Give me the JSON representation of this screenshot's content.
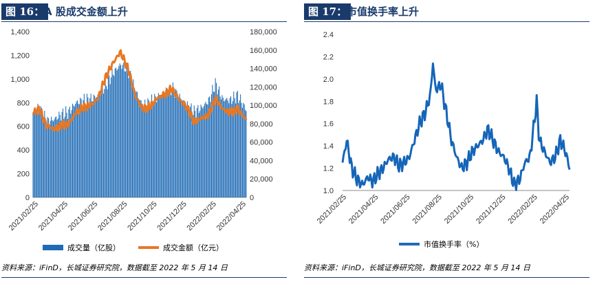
{
  "left": {
    "figure_label": "图 16：",
    "title": "A 股成交金额上升",
    "legend": {
      "bars": "成交量（亿股）",
      "line": "成交金额（亿元）"
    },
    "source": "资料来源：iFinD，长城证券研究院，数据截至 2022 年 5 月 14 日"
  },
  "right": {
    "figure_label": "图 17：",
    "title": "市值换手率上升",
    "legend": {
      "line": "市值换手率（%）"
    },
    "source": "资料来源：iFinD，长城证券研究院，数据截至 2022 年 5 月 14 日"
  },
  "colors": {
    "bar": "#1f6bb5",
    "amount_line": "#e87722",
    "turnover_line": "#1565b8",
    "accent": "#1a3a6b"
  },
  "chart_data": [
    {
      "type": "bar+line",
      "x_tick_labels": [
        "2021/02/25",
        "2021/04/25",
        "2021/06/25",
        "2021/08/25",
        "2021/10/25",
        "2021/12/25",
        "2022/02/25",
        "2022/04/25"
      ],
      "x_range": [
        "2021/02/25",
        "2022/05/13"
      ],
      "y_left": {
        "label": "",
        "ylim": [
          0,
          1400
        ],
        "ticks": [
          "0",
          "200",
          "400",
          "600",
          "800",
          "1,000",
          "1,200",
          "1,400"
        ]
      },
      "y_right": {
        "label": "",
        "ylim": [
          0,
          180000
        ],
        "ticks": [
          "0",
          "20,000",
          "40,000",
          "60,000",
          "80,000",
          "100,000",
          "120,000",
          "140,000",
          "160,000",
          "180,000"
        ]
      },
      "series": [
        {
          "name": "成交量（亿股）",
          "type": "bar",
          "axis": "left",
          "points": [
            [
              "2021/02/25",
              720
            ],
            [
              "2021/03/10",
              760
            ],
            [
              "2021/03/25",
              640
            ],
            [
              "2021/04/10",
              660
            ],
            [
              "2021/04/25",
              700
            ],
            [
              "2021/05/10",
              720
            ],
            [
              "2021/05/25",
              800
            ],
            [
              "2021/06/10",
              820
            ],
            [
              "2021/06/25",
              830
            ],
            [
              "2021/07/10",
              860
            ],
            [
              "2021/07/25",
              940
            ],
            [
              "2021/08/10",
              1050
            ],
            [
              "2021/08/25",
              1120
            ],
            [
              "2021/09/10",
              1080
            ],
            [
              "2021/09/25",
              900
            ],
            [
              "2021/10/10",
              780
            ],
            [
              "2021/10/25",
              800
            ],
            [
              "2021/11/10",
              850
            ],
            [
              "2021/11/25",
              880
            ],
            [
              "2021/12/10",
              920
            ],
            [
              "2021/12/25",
              850
            ],
            [
              "2022/01/10",
              780
            ],
            [
              "2022/01/25",
              720
            ],
            [
              "2022/02/10",
              760
            ],
            [
              "2022/02/25",
              820
            ],
            [
              "2022/03/10",
              960
            ],
            [
              "2022/03/25",
              830
            ],
            [
              "2022/04/10",
              820
            ],
            [
              "2022/04/25",
              860
            ],
            [
              "2022/05/13",
              740
            ]
          ]
        },
        {
          "name": "成交金额（亿元）",
          "type": "line",
          "axis": "right",
          "points": [
            [
              "2021/02/25",
              92000
            ],
            [
              "2021/03/10",
              96000
            ],
            [
              "2021/03/25",
              78000
            ],
            [
              "2021/04/10",
              74000
            ],
            [
              "2021/04/25",
              78000
            ],
            [
              "2021/05/10",
              80000
            ],
            [
              "2021/05/25",
              92000
            ],
            [
              "2021/06/10",
              98000
            ],
            [
              "2021/06/25",
              100000
            ],
            [
              "2021/07/10",
              108000
            ],
            [
              "2021/07/25",
              130000
            ],
            [
              "2021/08/10",
              146000
            ],
            [
              "2021/08/25",
              158000
            ],
            [
              "2021/09/10",
              140000
            ],
            [
              "2021/09/25",
              110000
            ],
            [
              "2021/10/10",
              96000
            ],
            [
              "2021/10/25",
              98000
            ],
            [
              "2021/11/10",
              108000
            ],
            [
              "2021/11/25",
              112000
            ],
            [
              "2021/12/10",
              118000
            ],
            [
              "2021/12/25",
              106000
            ],
            [
              "2022/01/10",
              98000
            ],
            [
              "2022/01/25",
              82000
            ],
            [
              "2022/02/10",
              86000
            ],
            [
              "2022/02/25",
              90000
            ],
            [
              "2022/03/10",
              108000
            ],
            [
              "2022/03/25",
              96000
            ],
            [
              "2022/04/10",
              92000
            ],
            [
              "2022/04/25",
              96000
            ],
            [
              "2022/05/13",
              84000
            ]
          ]
        }
      ]
    },
    {
      "type": "line",
      "x_tick_labels": [
        "2021/02/25",
        "2021/04/25",
        "2021/06/25",
        "2021/08/25",
        "2021/10/25",
        "2021/12/25",
        "2022/02/25",
        "2022/04/25"
      ],
      "x_range": [
        "2021/02/25",
        "2022/05/13"
      ],
      "y": {
        "label": "",
        "ylim": [
          1.0,
          2.4
        ],
        "ticks": [
          "1.0",
          "1.2",
          "1.4",
          "1.6",
          "1.8",
          "2.0",
          "2.2",
          "2.4"
        ]
      },
      "series": [
        {
          "name": "市值换手率（%）",
          "points": [
            [
              "2021/02/25",
              1.25
            ],
            [
              "2021/03/05",
              1.45
            ],
            [
              "2021/03/15",
              1.2
            ],
            [
              "2021/03/25",
              1.1
            ],
            [
              "2021/04/05",
              1.05
            ],
            [
              "2021/04/15",
              1.12
            ],
            [
              "2021/04/25",
              1.08
            ],
            [
              "2021/05/05",
              1.15
            ],
            [
              "2021/05/15",
              1.2
            ],
            [
              "2021/05/25",
              1.28
            ],
            [
              "2021/06/05",
              1.3
            ],
            [
              "2021/06/15",
              1.22
            ],
            [
              "2021/06/25",
              1.25
            ],
            [
              "2021/07/05",
              1.3
            ],
            [
              "2021/07/15",
              1.45
            ],
            [
              "2021/07/25",
              1.6
            ],
            [
              "2021/08/05",
              1.7
            ],
            [
              "2021/08/15",
              1.85
            ],
            [
              "2021/08/20",
              2.15
            ],
            [
              "2021/08/25",
              1.9
            ],
            [
              "2021/09/05",
              1.95
            ],
            [
              "2021/09/15",
              1.7
            ],
            [
              "2021/09/25",
              1.45
            ],
            [
              "2021/10/05",
              1.3
            ],
            [
              "2021/10/15",
              1.2
            ],
            [
              "2021/10/25",
              1.25
            ],
            [
              "2021/11/05",
              1.35
            ],
            [
              "2021/11/15",
              1.4
            ],
            [
              "2021/11/25",
              1.45
            ],
            [
              "2021/12/05",
              1.55
            ],
            [
              "2021/12/15",
              1.45
            ],
            [
              "2021/12/25",
              1.35
            ],
            [
              "2022/01/05",
              1.3
            ],
            [
              "2022/01/15",
              1.2
            ],
            [
              "2022/01/25",
              1.05
            ],
            [
              "2022/02/05",
              1.1
            ],
            [
              "2022/02/15",
              1.25
            ],
            [
              "2022/02/25",
              1.3
            ],
            [
              "2022/03/05",
              1.6
            ],
            [
              "2022/03/10",
              1.8
            ],
            [
              "2022/03/15",
              1.45
            ],
            [
              "2022/03/25",
              1.35
            ],
            [
              "2022/04/05",
              1.25
            ],
            [
              "2022/04/15",
              1.3
            ],
            [
              "2022/04/25",
              1.45
            ],
            [
              "2022/05/05",
              1.35
            ],
            [
              "2022/05/13",
              1.2
            ]
          ]
        }
      ]
    }
  ]
}
